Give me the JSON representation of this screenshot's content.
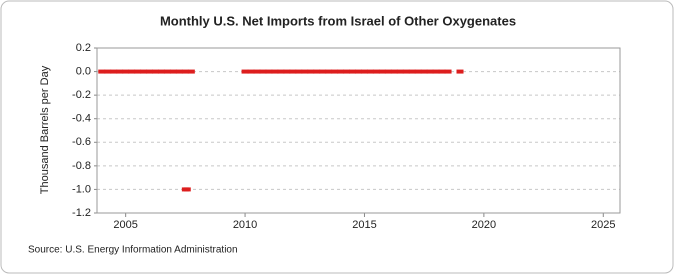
{
  "chart_data": {
    "type": "scatter",
    "title": "Monthly U.S. Net Imports from Israel of Other Oxygenates",
    "y_label": "Thousand Barrels per Day",
    "source": "Source: U.S. Energy Information Administration",
    "color": "#dd1e1e",
    "x": [
      2004.0,
      2004.25,
      2004.5,
      2004.75,
      2005.0,
      2005.25,
      2005.5,
      2005.75,
      2006.0,
      2006.25,
      2006.5,
      2006.75,
      2007.0,
      2007.25,
      2007.5,
      2007.75,
      2007.5,
      2007.58,
      2010.0,
      2010.25,
      2010.5,
      2010.75,
      2011.0,
      2011.25,
      2011.5,
      2011.75,
      2012.0,
      2012.25,
      2012.5,
      2012.75,
      2013.0,
      2013.25,
      2013.5,
      2013.75,
      2014.0,
      2014.25,
      2014.5,
      2014.75,
      2015.0,
      2015.25,
      2015.5,
      2015.75,
      2016.0,
      2016.25,
      2016.5,
      2016.75,
      2017.0,
      2017.25,
      2017.5,
      2017.75,
      2018.0,
      2018.25,
      2018.5,
      2019.0
    ],
    "values": [
      0,
      0,
      0,
      0,
      0,
      0,
      0,
      0,
      0,
      0,
      0,
      0,
      0,
      0,
      0,
      0,
      -1,
      -1,
      0,
      0,
      0,
      0,
      0,
      0,
      0,
      0,
      0,
      0,
      0,
      0,
      0,
      0,
      0,
      0,
      0,
      0,
      0,
      0,
      0,
      0,
      0,
      0,
      0,
      0,
      0,
      0,
      0,
      0,
      0,
      0,
      0,
      0,
      0,
      0
    ],
    "xlim": [
      2003.8,
      2025.7
    ],
    "xticks": [
      2005,
      2010,
      2015,
      2020,
      2025
    ],
    "ylim": [
      -1.2,
      0.2
    ],
    "yticks": [
      0.2,
      {
        "value": 0,
        "label": "0.0"
      },
      -0.2,
      -0.4,
      -0.6,
      -0.8,
      {
        "value": -1,
        "label": "-1.0"
      },
      -1.2
    ],
    "grid": true
  }
}
